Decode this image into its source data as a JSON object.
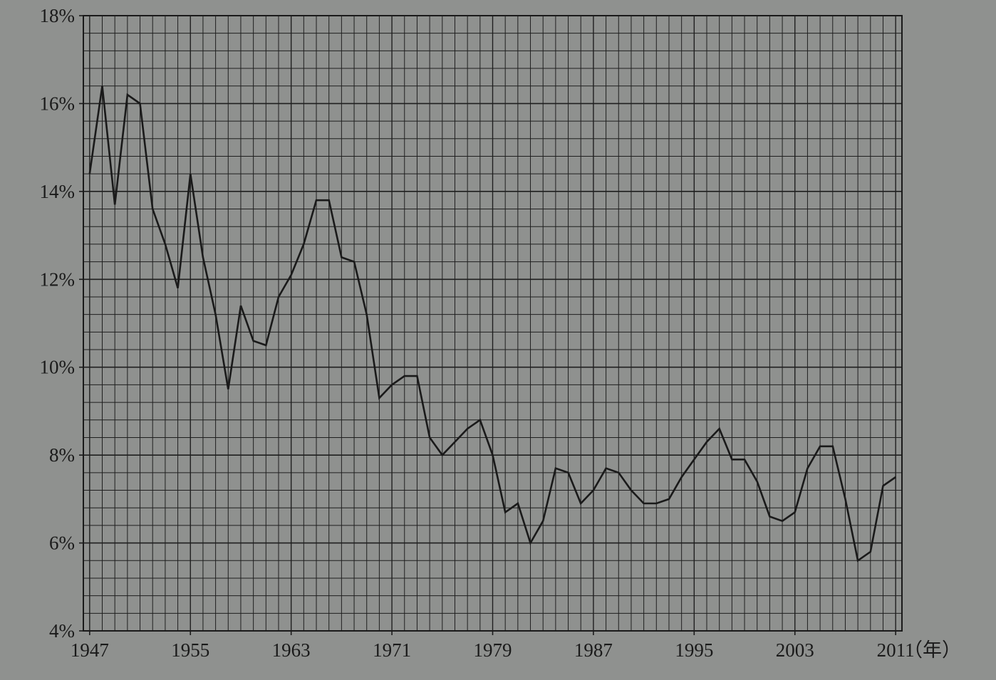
{
  "chart_data": {
    "type": "line",
    "title": "",
    "xlabel": "（年）",
    "ylabel": "",
    "xlim": [
      1946.5,
      2011.5
    ],
    "ylim": [
      4,
      18
    ],
    "grid": true,
    "x_tick_labels": [
      "1947",
      "1955",
      "1963",
      "1971",
      "1979",
      "1987",
      "1995",
      "2003",
      "2011"
    ],
    "y_tick_labels": [
      "4%",
      "6%",
      "8%",
      "10%",
      "12%",
      "14%",
      "16%",
      "18%"
    ],
    "x_ticks": [
      1947,
      1955,
      1963,
      1971,
      1979,
      1987,
      1995,
      2003,
      2011
    ],
    "y_ticks": [
      4,
      6,
      8,
      10,
      12,
      14,
      16,
      18
    ],
    "series": [
      {
        "name": "",
        "color": "#1a1a1a",
        "x": [
          1947,
          1948,
          1949,
          1950,
          1951,
          1952,
          1953,
          1954,
          1955,
          1956,
          1957,
          1958,
          1959,
          1960,
          1961,
          1962,
          1963,
          1964,
          1965,
          1966,
          1967,
          1968,
          1969,
          1970,
          1971,
          1972,
          1973,
          1974,
          1975,
          1976,
          1977,
          1978,
          1979,
          1980,
          1981,
          1982,
          1983,
          1984,
          1985,
          1986,
          1987,
          1988,
          1989,
          1990,
          1991,
          1992,
          1993,
          1994,
          1995,
          1996,
          1997,
          1998,
          1999,
          2000,
          2001,
          2002,
          2003,
          2004,
          2005,
          2006,
          2007,
          2008,
          2009,
          2010,
          2011
        ],
        "values": [
          14.4,
          16.4,
          13.7,
          16.2,
          16.0,
          13.6,
          12.8,
          11.8,
          14.4,
          12.5,
          11.2,
          9.5,
          11.4,
          10.6,
          10.5,
          11.6,
          12.1,
          12.8,
          13.8,
          13.8,
          12.5,
          12.4,
          11.2,
          9.3,
          9.6,
          9.8,
          9.8,
          8.4,
          8.0,
          8.3,
          8.6,
          8.8,
          8.0,
          6.7,
          6.9,
          6.0,
          6.5,
          7.7,
          7.6,
          6.9,
          7.2,
          7.7,
          7.6,
          7.2,
          6.9,
          6.9,
          7.0,
          7.5,
          7.9,
          8.3,
          8.6,
          7.9,
          7.9,
          7.4,
          6.6,
          6.5,
          6.7,
          7.7,
          8.2,
          8.2,
          7.0,
          5.6,
          5.8,
          7.3,
          7.5
        ]
      }
    ]
  }
}
